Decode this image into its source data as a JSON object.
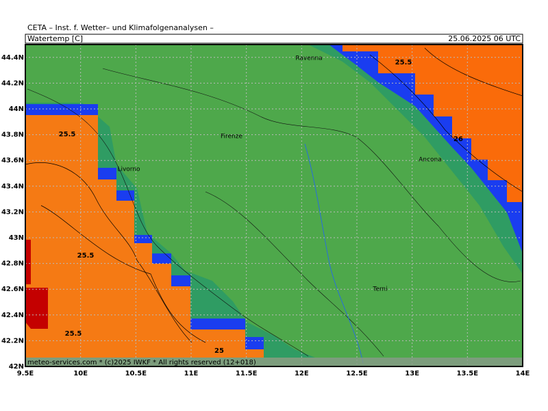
{
  "header": {
    "title": "CETA – Inst. f. Wetter– und Klimafolgenanalysen –",
    "field": "Watertemp [C]",
    "valid_time": "25.06.2025 06 UTC"
  },
  "map": {
    "xlim": [
      9.5,
      14
    ],
    "ylim": [
      42,
      44.5
    ],
    "xticks": [
      {
        "value": 9.5,
        "label": "9.5E"
      },
      {
        "value": 10,
        "label": "10E"
      },
      {
        "value": 10.5,
        "label": "10.5E"
      },
      {
        "value": 11,
        "label": "11E"
      },
      {
        "value": 11.5,
        "label": "11.5E"
      },
      {
        "value": 12,
        "label": "12E"
      },
      {
        "value": 12.5,
        "label": "12.5E"
      },
      {
        "value": 13,
        "label": "13E"
      },
      {
        "value": 13.5,
        "label": "13.5E"
      },
      {
        "value": 14,
        "label": "14E"
      }
    ],
    "yticks": [
      {
        "value": 42,
        "label": "42N"
      },
      {
        "value": 42.2,
        "label": "42.2N"
      },
      {
        "value": 42.4,
        "label": "42.4N"
      },
      {
        "value": 42.6,
        "label": "42.6N"
      },
      {
        "value": 42.8,
        "label": "42.8N"
      },
      {
        "value": 43,
        "label": "43N"
      },
      {
        "value": 43.2,
        "label": "43.2N"
      },
      {
        "value": 43.4,
        "label": "43.4N"
      },
      {
        "value": 43.6,
        "label": "43.6N"
      },
      {
        "value": 43.8,
        "label": "43.8N"
      },
      {
        "value": 44,
        "label": "44N"
      },
      {
        "value": 44.2,
        "label": "44.2N"
      },
      {
        "value": 44.4,
        "label": "44.4N"
      }
    ],
    "places": [
      "Ravenna",
      "Firenze",
      "Livorno",
      "Ancona",
      "Terni"
    ],
    "contour_labels": [
      25.5,
      26,
      25.5,
      25.5,
      25.5,
      25
    ]
  },
  "footer": "meteo-services.com * (c)2025 IWKF * All rights reserved (12+018)"
}
